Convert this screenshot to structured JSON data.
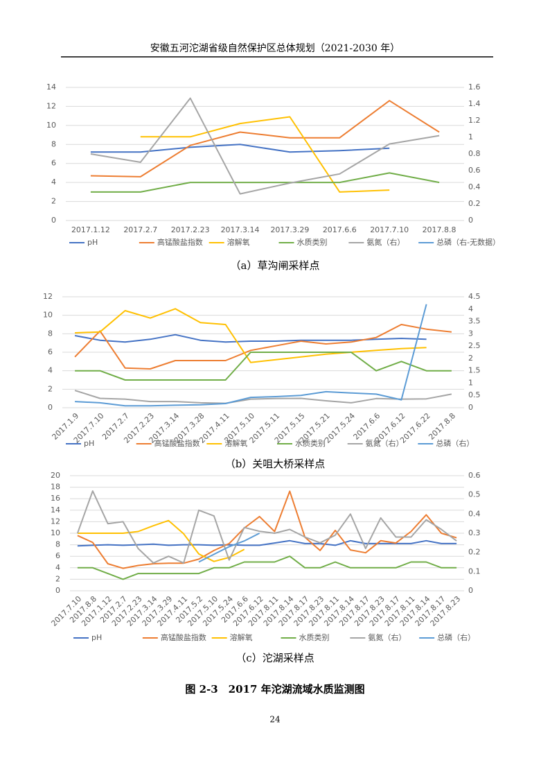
{
  "header": "安徽五河沱湖省级自然保护区总体规划（2021-2030 年）",
  "figure_title": "图 2-3　2017 年沱湖流域水质监测图",
  "page_number": "24",
  "chart_data": [
    {
      "type": "line",
      "caption": "（a）草沟闸采样点",
      "grid": true,
      "categories": [
        "2017.1.12",
        "2017.2.7",
        "2017.2.23",
        "2017.3.14",
        "2017.3.29",
        "2017.6.6",
        "2017.7.10",
        "2017.8.8"
      ],
      "ylim": [
        0,
        14
      ],
      "yticks": [
        0,
        2,
        4,
        6,
        8,
        10,
        12,
        14
      ],
      "y2lim": [
        0,
        1.6
      ],
      "y2ticks": [
        0,
        0.2,
        0.4,
        0.6,
        0.8,
        1,
        1.2,
        1.4,
        1.6
      ],
      "series": [
        {
          "name": "pH",
          "color": "#4472c4",
          "values": [
            7.2,
            7.2,
            7.7,
            8.0,
            7.2,
            7.35,
            7.6,
            null
          ]
        },
        {
          "name": "高锰酸盐指数",
          "color": "#ed7d31",
          "values": [
            4.7,
            4.6,
            7.9,
            9.3,
            8.7,
            8.7,
            12.6,
            9.3
          ]
        },
        {
          "name": "溶解氧",
          "color": "#ffc000",
          "values": [
            null,
            8.8,
            8.8,
            10.2,
            10.9,
            3.0,
            3.2,
            null
          ]
        },
        {
          "name": "水质类别",
          "color": "#70ad47",
          "values": [
            3,
            3,
            4,
            4,
            4,
            4,
            5,
            4
          ]
        },
        {
          "name": "氨氮（右）",
          "color": "#a5a5a5",
          "axis": "y2",
          "values": [
            0.8,
            0.7,
            1.47,
            0.32,
            0.45,
            0.56,
            0.92,
            1.02
          ]
        },
        {
          "name": "总磷（右-无数据）",
          "color": "#5b9bd5",
          "axis": "y2",
          "values": [
            null,
            null,
            null,
            null,
            null,
            null,
            null,
            null
          ]
        }
      ]
    },
    {
      "type": "line",
      "caption": "（b）关咀大桥采样点",
      "grid": true,
      "categories": [
        "2017.1.9",
        "2017.7.10",
        "2017.2.7",
        "2017.2.23",
        "2017.3.14",
        "2017.3.28",
        "2017.4.11",
        "2017.5.10",
        "2017.5.11",
        "2017.5.15",
        "2017.5.21",
        "2017.5.24",
        "2017.6.6",
        "2017.6.12",
        "2017.6.22",
        "2017.8.8"
      ],
      "ylim": [
        0,
        12
      ],
      "yticks": [
        0,
        2,
        4,
        6,
        8,
        10,
        12
      ],
      "y2lim": [
        0,
        4.5
      ],
      "y2ticks": [
        0,
        0.5,
        1,
        1.5,
        2,
        2.5,
        3,
        3.5,
        4,
        4.5
      ],
      "series": [
        {
          "name": "pH",
          "color": "#4472c4",
          "values": [
            7.8,
            7.3,
            7.1,
            7.4,
            7.9,
            7.3,
            7.1,
            7.2,
            7.2,
            7.3,
            7.3,
            7.3,
            7.4,
            7.5,
            7.4,
            null
          ]
        },
        {
          "name": "高锰酸盐指数",
          "color": "#ed7d31",
          "values": [
            5.5,
            8.3,
            4.3,
            4.2,
            5.1,
            5.1,
            5.1,
            6.2,
            6.7,
            7.2,
            6.9,
            7.1,
            7.6,
            9.0,
            8.5,
            8.2
          ]
        },
        {
          "name": "溶解氧",
          "color": "#ffc000",
          "values": [
            8.1,
            8.2,
            10.5,
            9.7,
            10.7,
            9.2,
            9.0,
            4.9,
            5.2,
            5.5,
            5.8,
            6.0,
            6.2,
            6.4,
            6.5,
            null
          ]
        },
        {
          "name": "水质类别",
          "color": "#70ad47",
          "values": [
            4,
            4,
            3,
            3,
            3,
            3,
            3,
            6,
            6,
            6,
            6,
            6,
            4,
            5,
            4,
            4
          ]
        },
        {
          "name": "氨氮（右）",
          "color": "#a5a5a5",
          "axis": "y2",
          "values": [
            0.7,
            0.38,
            0.35,
            0.25,
            0.25,
            0.2,
            0.18,
            0.35,
            0.37,
            0.38,
            0.28,
            0.2,
            0.37,
            0.35,
            0.36,
            0.55
          ]
        },
        {
          "name": "总磷（右）",
          "color": "#5b9bd5",
          "axis": "y2",
          "values": [
            0.25,
            0.2,
            0.08,
            0.08,
            0.1,
            0.12,
            0.17,
            0.42,
            0.45,
            0.5,
            0.65,
            0.6,
            0.55,
            0.32,
            4.2,
            null
          ]
        }
      ]
    },
    {
      "type": "line",
      "caption": "（c）沱湖采样点",
      "grid": true,
      "categories": [
        "2017.7.10",
        "2017.8.8",
        "2017.1.12",
        "2017.2.7",
        "2017.2.23",
        "2017.3.14",
        "2017.3.29",
        "2017.4.11",
        "2017.5.2",
        "2017.5.10",
        "2017.5.24",
        "2017.6.6",
        "2017.6.12",
        "2017.8.11",
        "2017.8.14",
        "2017.8.17",
        "2017.8.23",
        "2017.8.11",
        "2017.8.14",
        "2017.8.17",
        "2017.8.23",
        "2017.8.17",
        "2017.8.11",
        "2017.8.14",
        "2017.8.17",
        "2017.8.23"
      ],
      "ylim": [
        0,
        20
      ],
      "yticks": [
        0,
        2,
        4,
        6,
        8,
        10,
        12,
        14,
        16,
        18,
        20
      ],
      "y2lim": [
        0,
        0.6
      ],
      "y2ticks": [
        0,
        0.1,
        0.2,
        0.3,
        0.4,
        0.5,
        0.6
      ],
      "series": [
        {
          "name": "pH",
          "color": "#4472c4",
          "values": [
            7.8,
            7.9,
            8.0,
            7.9,
            8.0,
            8.1,
            7.9,
            8.0,
            8.0,
            7.9,
            8.0,
            7.9,
            7.9,
            8.3,
            8.7,
            8.2,
            8.2,
            7.9,
            8.7,
            8.2,
            8.2,
            8.2,
            8.2,
            8.7,
            8.2,
            8.2
          ]
        },
        {
          "name": "高锰酸盐指数",
          "color": "#ed7d31",
          "values": [
            9.6,
            8.4,
            4.7,
            3.9,
            4.4,
            4.7,
            4.8,
            4.8,
            5.5,
            7.0,
            8.2,
            10.9,
            12.9,
            10.3,
            17.3,
            9.3,
            7.0,
            10.5,
            7.1,
            6.6,
            8.7,
            8.3,
            10.3,
            13.2,
            10.0,
            9.2
          ]
        },
        {
          "name": "溶解氧",
          "color": "#ffc000",
          "values": [
            10,
            10,
            10,
            10,
            10.3,
            11.3,
            12.2,
            9.9,
            6.4,
            5.1,
            5.8,
            7.2,
            null,
            null,
            null,
            null,
            null,
            null,
            null,
            null,
            null,
            null,
            null,
            null,
            null,
            null
          ]
        },
        {
          "name": "水质类别",
          "color": "#70ad47",
          "values": [
            4,
            4,
            3,
            2,
            3,
            3,
            3,
            3,
            3,
            4,
            4,
            5,
            5,
            5,
            6,
            4,
            4,
            5,
            4,
            4,
            4,
            4,
            5,
            5,
            4,
            4
          ]
        },
        {
          "name": "氨氮（右）",
          "color": "#a5a5a5",
          "axis": "y2",
          "values": [
            0.3,
            0.52,
            0.35,
            0.36,
            0.22,
            0.145,
            0.18,
            0.145,
            0.42,
            0.39,
            0.16,
            0.33,
            0.31,
            0.3,
            0.32,
            0.28,
            0.25,
            0.29,
            0.4,
            0.22,
            0.38,
            0.28,
            0.28,
            0.37,
            0.32,
            0.26
          ]
        },
        {
          "name": "总磷（右）",
          "color": "#5b9bd5",
          "axis": "y2",
          "values": [
            null,
            null,
            null,
            null,
            null,
            null,
            null,
            null,
            0.15,
            0.19,
            0.23,
            0.26,
            0.3,
            null,
            null,
            null,
            null,
            null,
            null,
            null,
            null,
            null,
            null,
            null,
            null,
            null
          ]
        }
      ]
    }
  ]
}
